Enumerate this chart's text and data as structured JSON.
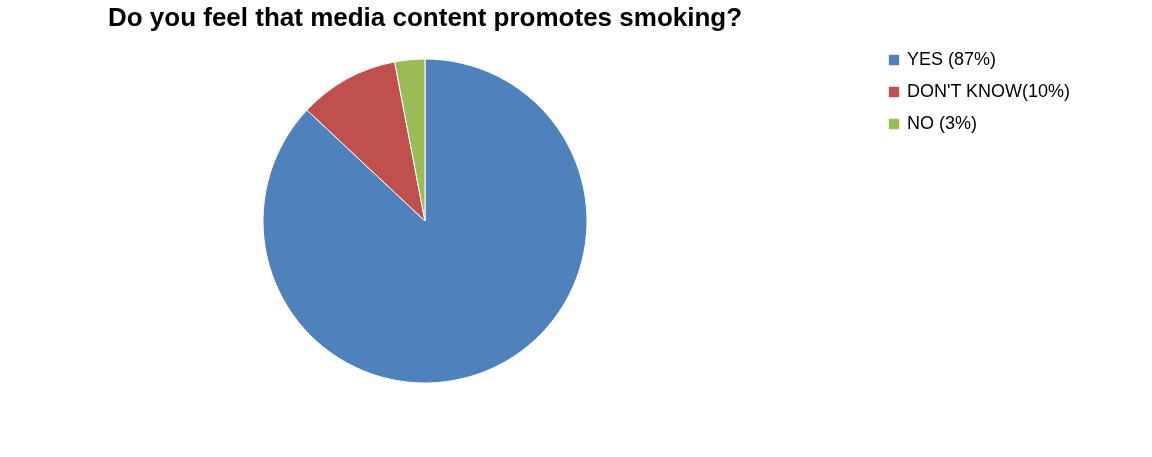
{
  "chart_data": {
    "type": "pie",
    "title": "Do you feel that media content promotes smoking?",
    "categories": [
      "YES (87%)",
      "DON'T KNOW(10%)",
      "NO (3%)"
    ],
    "values": [
      87,
      10,
      3
    ],
    "colors": [
      "#4f81bd",
      "#c0504d",
      "#9bbb59"
    ],
    "legend": "right"
  }
}
